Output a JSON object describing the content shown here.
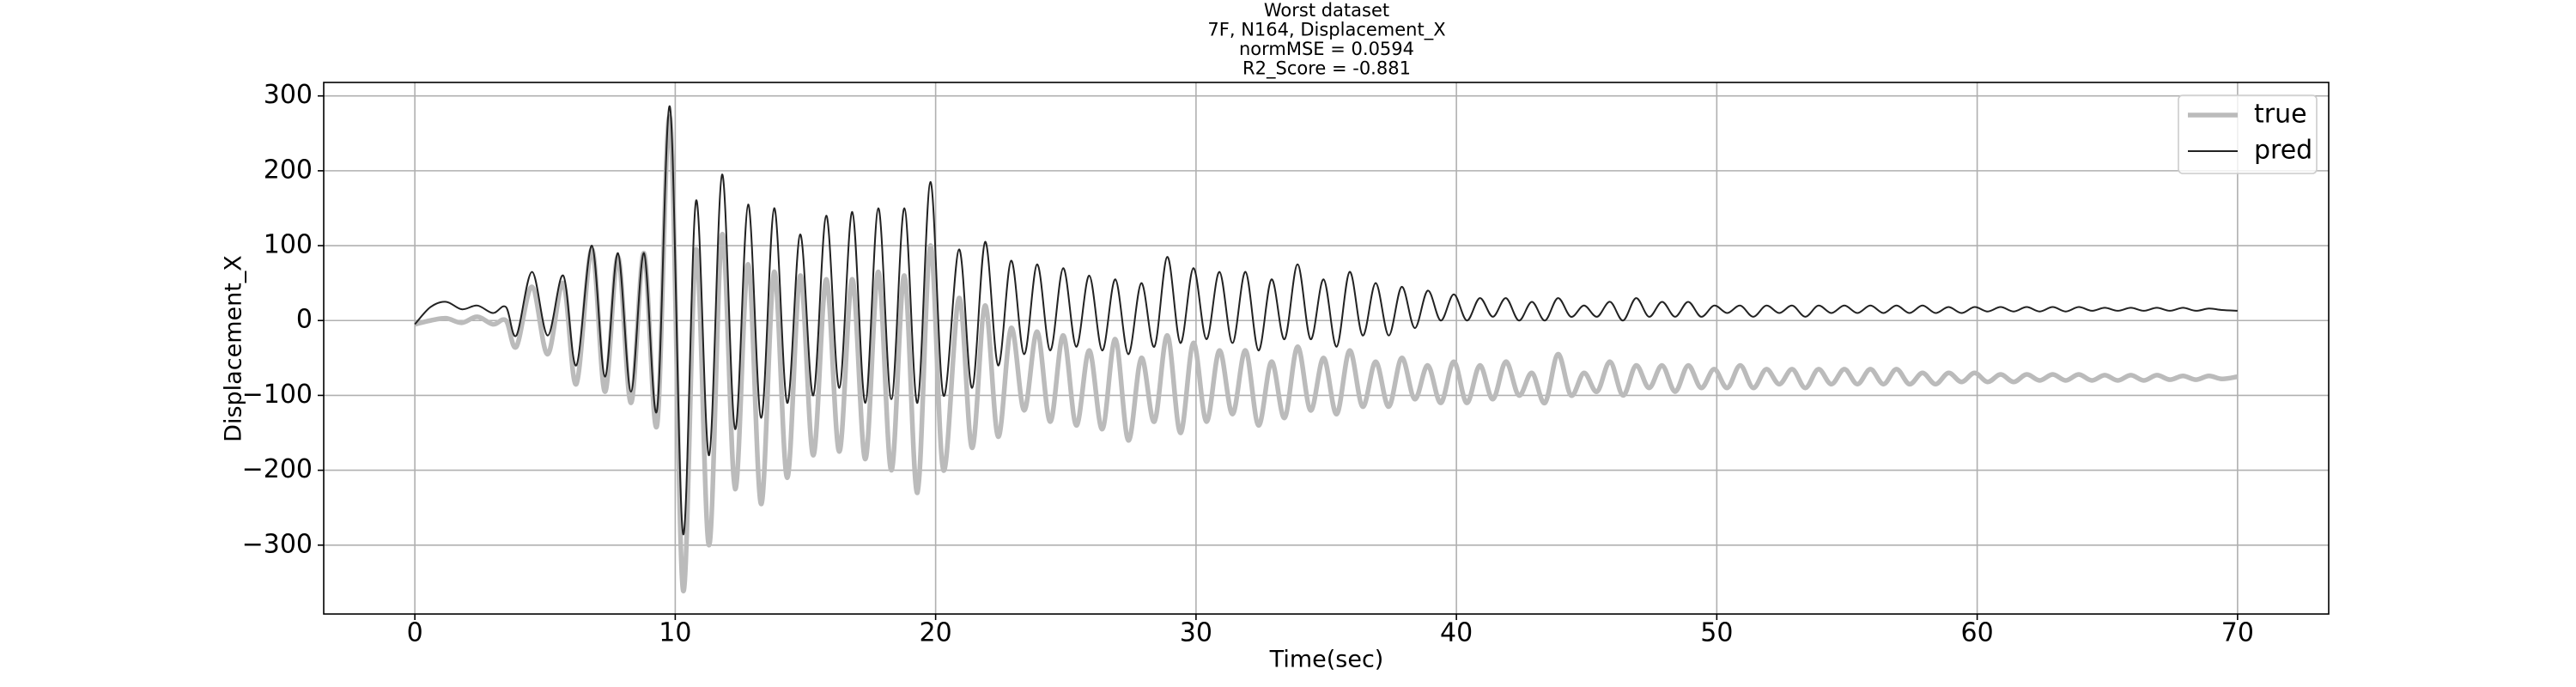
{
  "chart_data": {
    "type": "line",
    "title_lines": [
      "Worst dataset",
      "7F, N164, Displacement_X",
      "normMSE = 0.0594",
      "R2_Score = -0.881"
    ],
    "xlabel": "Time(sec)",
    "ylabel": "Displacement_X",
    "x": [
      0,
      0.6,
      1.2,
      1.8,
      2.4,
      3.0,
      3.5,
      3.9,
      4.5,
      5.1,
      5.7,
      6.2,
      6.8,
      7.3,
      7.8,
      8.3,
      8.8,
      9.3,
      9.8,
      10.3,
      10.8,
      11.3,
      11.8,
      12.3,
      12.8,
      13.3,
      13.8,
      14.3,
      14.8,
      15.3,
      15.8,
      16.3,
      16.8,
      17.3,
      17.8,
      18.3,
      18.8,
      19.3,
      19.8,
      20.3,
      20.9,
      21.4,
      21.9,
      22.4,
      22.9,
      23.4,
      23.9,
      24.4,
      24.9,
      25.4,
      25.9,
      26.4,
      26.9,
      27.4,
      27.9,
      28.4,
      28.9,
      29.4,
      29.9,
      30.4,
      30.9,
      31.4,
      31.9,
      32.4,
      32.9,
      33.4,
      33.9,
      34.4,
      34.9,
      35.4,
      35.9,
      36.4,
      36.9,
      37.4,
      37.9,
      38.4,
      38.9,
      39.4,
      39.9,
      40.4,
      40.9,
      41.4,
      41.9,
      42.4,
      42.9,
      43.4,
      43.9,
      44.4,
      44.9,
      45.4,
      45.9,
      46.4,
      46.9,
      47.4,
      47.9,
      48.4,
      48.9,
      49.4,
      49.9,
      50.4,
      50.9,
      51.4,
      51.9,
      52.4,
      52.9,
      53.4,
      53.9,
      54.4,
      54.9,
      55.4,
      55.9,
      56.4,
      56.9,
      57.4,
      57.9,
      58.4,
      58.9,
      59.4,
      59.9,
      60.4,
      60.9,
      61.4,
      61.9,
      62.4,
      62.9,
      63.4,
      63.9,
      64.4,
      64.9,
      65.4,
      65.9,
      66.4,
      66.9,
      67.4,
      67.9,
      68.4,
      68.9,
      69.4,
      70
    ],
    "series": [
      {
        "name": "true",
        "color": "#bbbbbb",
        "width": 5.5,
        "values": [
          -5,
          0,
          3,
          -3,
          5,
          -5,
          0,
          -35,
          45,
          -45,
          50,
          -85,
          95,
          -95,
          85,
          -110,
          90,
          -140,
          270,
          -360,
          95,
          -300,
          115,
          -225,
          75,
          -245,
          65,
          -210,
          60,
          -180,
          55,
          -175,
          55,
          -185,
          65,
          -200,
          60,
          -230,
          100,
          -200,
          30,
          -170,
          20,
          -155,
          -10,
          -120,
          -15,
          -135,
          -20,
          -140,
          -40,
          -145,
          -25,
          -160,
          -50,
          -135,
          -20,
          -150,
          -30,
          -135,
          -40,
          -125,
          -40,
          -140,
          -55,
          -130,
          -35,
          -120,
          -50,
          -125,
          -40,
          -115,
          -55,
          -115,
          -50,
          -105,
          -60,
          -110,
          -55,
          -110,
          -60,
          -105,
          -55,
          -100,
          -70,
          -110,
          -45,
          -100,
          -70,
          -95,
          -55,
          -100,
          -60,
          -90,
          -60,
          -95,
          -60,
          -90,
          -65,
          -90,
          -60,
          -90,
          -65,
          -85,
          -65,
          -90,
          -65,
          -85,
          -65,
          -85,
          -65,
          -85,
          -65,
          -85,
          -70,
          -85,
          -70,
          -82,
          -70,
          -82,
          -72,
          -82,
          -72,
          -80,
          -72,
          -80,
          -72,
          -80,
          -73,
          -80,
          -73,
          -80,
          -73,
          -79,
          -74,
          -79,
          -74,
          -78,
          -75
        ]
      },
      {
        "name": "pred",
        "color": "#222222",
        "width": 2,
        "values": [
          -5,
          18,
          25,
          15,
          20,
          10,
          18,
          -20,
          65,
          -20,
          60,
          -60,
          100,
          -75,
          90,
          -95,
          90,
          -120,
          285,
          -285,
          160,
          -180,
          195,
          -145,
          155,
          -130,
          150,
          -110,
          115,
          -100,
          140,
          -90,
          145,
          -110,
          150,
          -105,
          150,
          -110,
          185,
          -100,
          95,
          -90,
          105,
          -60,
          80,
          -45,
          75,
          -40,
          70,
          -35,
          60,
          -40,
          55,
          -45,
          50,
          -35,
          85,
          -30,
          70,
          -25,
          65,
          -30,
          65,
          -40,
          55,
          -25,
          75,
          -25,
          55,
          -35,
          65,
          -20,
          50,
          -20,
          45,
          -10,
          40,
          0,
          35,
          0,
          30,
          5,
          30,
          0,
          25,
          0,
          30,
          5,
          20,
          5,
          25,
          0,
          30,
          5,
          25,
          5,
          25,
          5,
          20,
          10,
          20,
          5,
          20,
          10,
          20,
          5,
          20,
          10,
          20,
          10,
          20,
          10,
          20,
          10,
          20,
          10,
          18,
          10,
          18,
          12,
          18,
          12,
          18,
          12,
          18,
          12,
          18,
          13,
          17,
          13,
          17,
          13,
          17,
          13,
          17,
          13,
          16,
          14,
          13
        ]
      }
    ],
    "xlim": [
      -3.5,
      73.5
    ],
    "ylim": [
      -392,
      318
    ],
    "xticks": [
      0,
      10,
      20,
      30,
      40,
      50,
      60,
      70
    ],
    "yticks": [
      {
        "value": -300,
        "label": "−300"
      },
      {
        "value": -200,
        "label": "−200"
      },
      {
        "value": -100,
        "label": "−100"
      },
      0,
      100,
      200,
      300
    ],
    "grid": true,
    "legend": "upper right"
  }
}
